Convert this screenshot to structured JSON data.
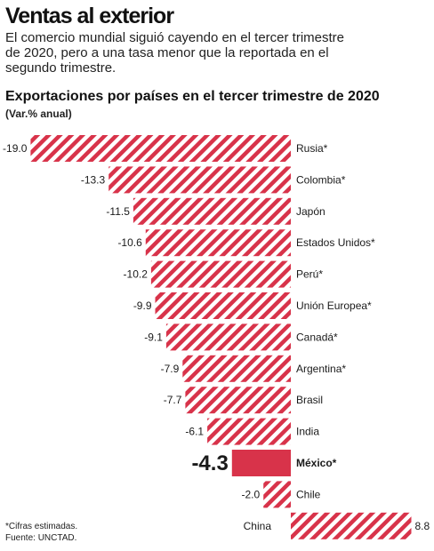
{
  "header": {
    "title": "Ventas al exterior",
    "subtitle": "El comercio mundial siguió cayendo en el tercer trimestre de 2020, pero a una tasa menor que la reportada en el segundo trimestre."
  },
  "colors": {
    "bar_stripe": "#d8334a",
    "highlight": "#d8334a",
    "text": "#1a1a1a"
  },
  "chart_data": {
    "type": "bar",
    "orientation": "horizontal",
    "title": "Exportaciones por países en el tercer trimestre de 2020",
    "subtitle": "(Var.% anual)",
    "categories": [
      "Rusia*",
      "Colombia*",
      "Japón",
      "Estados Unidos*",
      "Perú*",
      "Unión Europea*",
      "Canadá*",
      "Argentina*",
      "Brasil",
      "India",
      "México*",
      "Chile",
      "China"
    ],
    "values": [
      -19.0,
      -13.3,
      -11.5,
      -10.6,
      -10.2,
      -9.9,
      -9.1,
      -7.9,
      -7.7,
      -6.1,
      -4.3,
      -2.0,
      8.8
    ],
    "value_labels": [
      "-19.0",
      "-13.3",
      "-11.5",
      "-10.6",
      "-10.2",
      "-9.9",
      "-9.1",
      "-7.9",
      "-7.7",
      "-6.1",
      "-4.3",
      "-2.0",
      "8.8"
    ],
    "highlight": "México*",
    "grid": false,
    "legend": "none"
  },
  "footnotes": {
    "line1": "*Cifras estimadas.",
    "line2": "Fuente: UNCTAD."
  }
}
